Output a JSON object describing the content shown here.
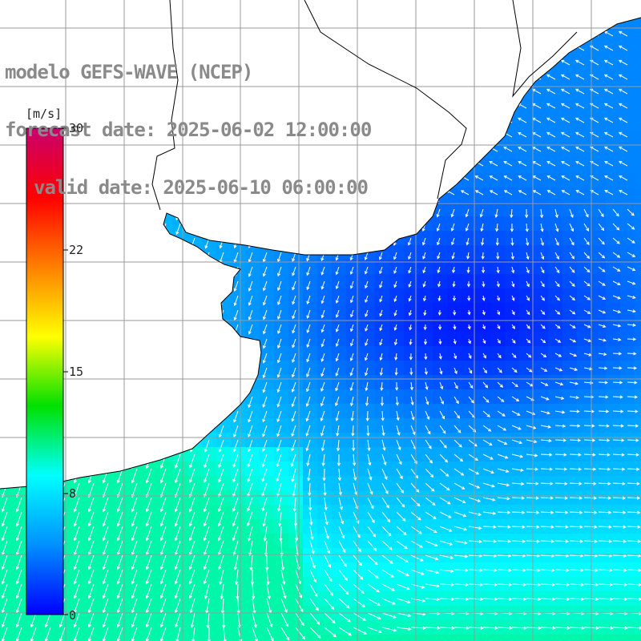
{
  "title": {
    "line1": "modelo GEFS-WAVE (NCEP)",
    "line2": "forecast date: 2025-06-02 12:00:00",
    "line3": "valid date: 2025-06-10 06:00:00"
  },
  "colorbar": {
    "unit": "[m/s]",
    "ticks": [
      "30",
      "22",
      "15",
      "8",
      "0"
    ],
    "range": [
      0,
      30
    ],
    "stops": [
      "#0000ff",
      "#0090ff",
      "#00ffff",
      "#00e000",
      "#ffff00",
      "#ff8000",
      "#ff0000",
      "#c8006e"
    ]
  },
  "field": {
    "variable": "wind speed and direction",
    "max_visible": 9,
    "min_visible": 1,
    "colors": {
      "land": "#ffffff",
      "grid": "#9a9a9a",
      "coast": "#000000",
      "arrow": "#ffffff"
    }
  }
}
